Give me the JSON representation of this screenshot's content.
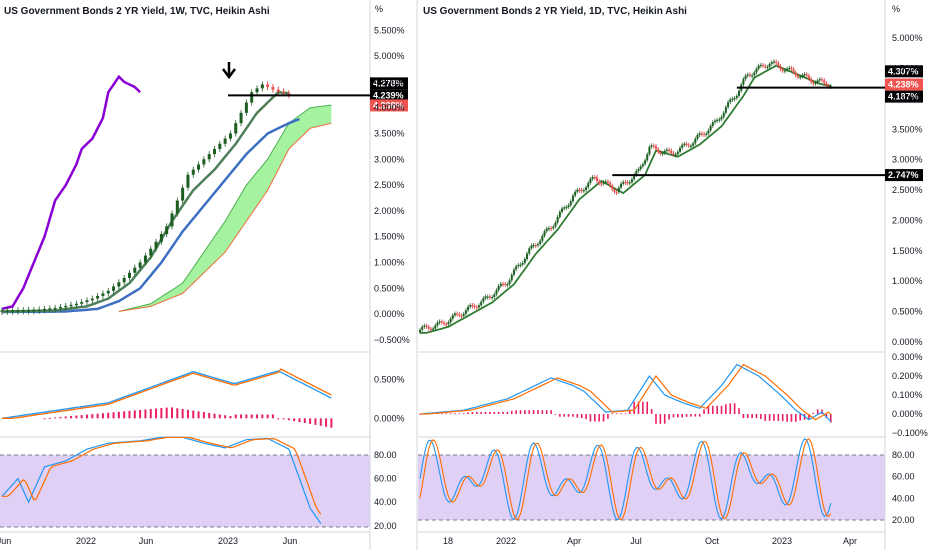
{
  "chart_data": [
    {
      "type": "candlestick",
      "title": "US Government Bonds 2 YR Yield, 1W, TVC, Heikin Ashi",
      "unit_label": "%",
      "price_axis": [
        "5.500%",
        "5.000%",
        "4.500%",
        "4.000%",
        "3.500%",
        "3.000%",
        "2.500%",
        "2.000%",
        "1.500%",
        "1.000%",
        "0.500%",
        "0.000%",
        "−0.500%"
      ],
      "price_ticks": [
        5.5,
        5.0,
        4.5,
        4.0,
        3.5,
        3.0,
        2.5,
        2.0,
        1.5,
        1.0,
        0.5,
        0.0,
        -0.5
      ],
      "ylim": [
        -0.6,
        5.7
      ],
      "time_axis": [
        "Jun",
        "2022",
        "Jun",
        "2023",
        "Jun"
      ],
      "price_tags": [
        {
          "label": "4.278%",
          "value": 4.278,
          "color": "#000000"
        },
        {
          "label": "4.239%",
          "value": 4.239,
          "color": "#000000"
        },
        {
          "label": "4.238%",
          "value": 4.238,
          "color": "#ef5350"
        }
      ],
      "horizontal_lines": [
        4.239
      ],
      "annotation": "down-arrow",
      "macd_axis": [
        "0.500%",
        "0.000%"
      ],
      "macd_ticks": [
        0.5,
        0.0
      ],
      "stoch_axis": [
        "80.00",
        "60.00",
        "40.00",
        "20.00"
      ],
      "stoch_ticks": [
        80,
        60,
        40,
        20
      ],
      "series": [
        {
          "role": "ha-close",
          "points": [
            [
              0,
              0.07
            ],
            [
              6,
              0.08
            ],
            [
              10,
              0.12
            ],
            [
              14,
              0.2
            ],
            [
              17,
              0.3
            ],
            [
              20,
              0.45
            ],
            [
              23,
              0.7
            ],
            [
              26,
              1.0
            ],
            [
              29,
              1.4
            ],
            [
              31,
              1.7
            ],
            [
              33,
              2.2
            ],
            [
              35,
              2.7
            ],
            [
              37,
              2.9
            ],
            [
              39,
              3.1
            ],
            [
              41,
              3.3
            ],
            [
              43,
              3.5
            ],
            [
              45,
              3.9
            ],
            [
              47,
              4.3
            ],
            [
              49,
              4.45
            ],
            [
              51,
              4.35
            ],
            [
              53,
              4.28
            ],
            [
              54,
              4.24
            ]
          ]
        },
        {
          "role": "purple-line",
          "points": [
            [
              0,
              0.1
            ],
            [
              2,
              0.15
            ],
            [
              4,
              0.5
            ],
            [
              6,
              1.0
            ],
            [
              8,
              1.5
            ],
            [
              10,
              2.2
            ],
            [
              12,
              2.5
            ],
            [
              14,
              2.9
            ],
            [
              15,
              3.2
            ],
            [
              17,
              3.4
            ],
            [
              19,
              3.8
            ],
            [
              20,
              4.3
            ],
            [
              22,
              4.6
            ],
            [
              23,
              4.5
            ],
            [
              25,
              4.4
            ],
            [
              26,
              4.3
            ]
          ]
        },
        {
          "role": "green-ma",
          "points": [
            [
              0,
              0.05
            ],
            [
              10,
              0.07
            ],
            [
              16,
              0.15
            ],
            [
              20,
              0.3
            ],
            [
              24,
              0.6
            ],
            [
              28,
              1.1
            ],
            [
              32,
              1.8
            ],
            [
              36,
              2.4
            ],
            [
              40,
              2.8
            ],
            [
              44,
              3.3
            ],
            [
              48,
              3.9
            ],
            [
              52,
              4.3
            ],
            [
              54,
              4.28
            ]
          ]
        },
        {
          "role": "blue-ma",
          "points": [
            [
              0,
              0.04
            ],
            [
              12,
              0.05
            ],
            [
              18,
              0.1
            ],
            [
              22,
              0.25
            ],
            [
              26,
              0.5
            ],
            [
              30,
              1.0
            ],
            [
              34,
              1.6
            ],
            [
              38,
              2.1
            ],
            [
              42,
              2.6
            ],
            [
              46,
              3.1
            ],
            [
              50,
              3.5
            ],
            [
              54,
              3.7
            ],
            [
              56,
              3.78
            ]
          ]
        },
        {
          "role": "cloud-upper",
          "points": [
            [
              22,
              0.05
            ],
            [
              28,
              0.2
            ],
            [
              34,
              0.6
            ],
            [
              38,
              1.2
            ],
            [
              42,
              1.8
            ],
            [
              46,
              2.5
            ],
            [
              50,
              3.0
            ],
            [
              54,
              3.7
            ],
            [
              58,
              4.0
            ],
            [
              62,
              4.05
            ]
          ]
        },
        {
          "role": "cloud-lower",
          "points": [
            [
              22,
              0.05
            ],
            [
              28,
              0.15
            ],
            [
              34,
              0.4
            ],
            [
              38,
              0.8
            ],
            [
              42,
              1.2
            ],
            [
              46,
              1.8
            ],
            [
              50,
              2.4
            ],
            [
              54,
              3.2
            ],
            [
              58,
              3.6
            ],
            [
              62,
              3.7
            ]
          ]
        }
      ]
    },
    {
      "type": "candlestick",
      "title": "US Government Bonds 2 YR Yield, 1D, TVC, Heikin Ashi",
      "unit_label": "%",
      "price_axis": [
        "5.000%",
        "4.500%",
        "4.000%",
        "3.500%",
        "3.000%",
        "2.500%",
        "2.000%",
        "1.500%",
        "1.000%",
        "0.500%",
        "0.000%"
      ],
      "price_ticks": [
        5.0,
        4.5,
        4.0,
        3.5,
        3.0,
        2.5,
        2.0,
        1.5,
        1.0,
        0.5,
        0.0
      ],
      "ylim": [
        -0.05,
        5.3
      ],
      "time_axis": [
        "18",
        "2022",
        "Apr",
        "Jul",
        "Oct",
        "2023",
        "Apr"
      ],
      "price_tags": [
        {
          "label": "4.307%",
          "value": 4.307,
          "color": "#000000"
        },
        {
          "label": "4.238%",
          "value": 4.238,
          "color": "#ef5350"
        },
        {
          "label": "4.187%",
          "value": 4.187,
          "color": "#000000"
        },
        {
          "label": "2.747%",
          "value": 2.747,
          "color": "#000000"
        }
      ],
      "horizontal_lines": [
        4.187,
        2.747
      ],
      "macd_axis": [
        "0.300%",
        "0.200%",
        "0.100%",
        "0.000%",
        "−0.100%"
      ],
      "macd_ticks": [
        0.3,
        0.2,
        0.1,
        0.0,
        -0.1
      ],
      "stoch_axis": [
        "80.00",
        "60.00",
        "40.00",
        "20.00"
      ],
      "stoch_ticks": [
        80,
        60,
        40,
        20
      ],
      "series": [
        {
          "role": "ha-close",
          "points": [
            [
              0,
              0.2
            ],
            [
              10,
              0.3
            ],
            [
              20,
              0.5
            ],
            [
              30,
              0.7
            ],
            [
              40,
              1.0
            ],
            [
              50,
              1.5
            ],
            [
              60,
              1.9
            ],
            [
              70,
              2.4
            ],
            [
              80,
              2.7
            ],
            [
              90,
              2.5
            ],
            [
              100,
              2.8
            ],
            [
              105,
              3.2
            ],
            [
              115,
              3.1
            ],
            [
              125,
              3.3
            ],
            [
              135,
              3.6
            ],
            [
              145,
              4.1
            ],
            [
              150,
              4.4
            ],
            [
              160,
              4.6
            ],
            [
              170,
              4.45
            ],
            [
              180,
              4.3
            ],
            [
              188,
              4.24
            ]
          ]
        }
      ]
    }
  ]
}
